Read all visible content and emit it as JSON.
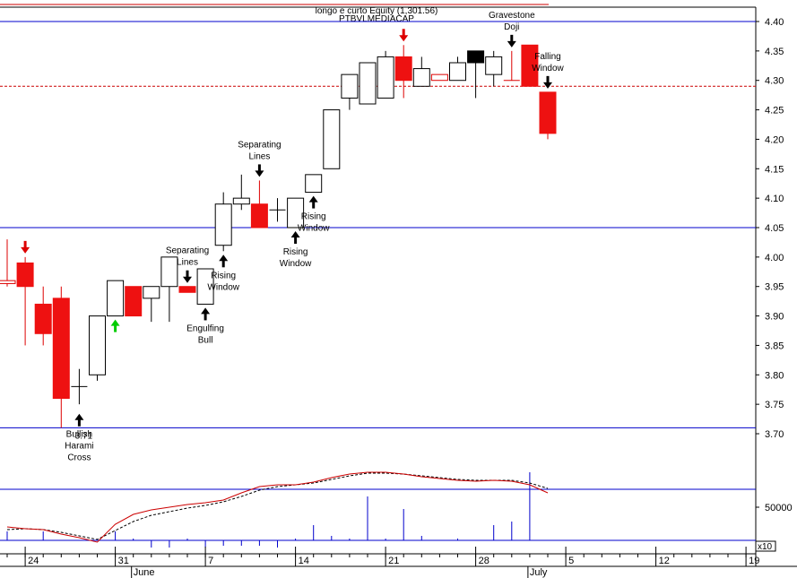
{
  "chart_data": {
    "type": "candlestick",
    "title": "longo e curto Equity (1,301.56)",
    "subtitle": "PTBVLMEDIACAP",
    "y_ticks": [
      4.4,
      4.35,
      4.3,
      4.25,
      4.2,
      4.15,
      4.1,
      4.05,
      4.0,
      3.95,
      3.9,
      3.85,
      3.8,
      3.75,
      3.7
    ],
    "ylim": [
      3.7,
      4.4
    ],
    "horizontal_lines": [
      {
        "value": 4.4,
        "style": "solid",
        "color": "#0000cc"
      },
      {
        "value": 4.05,
        "style": "solid",
        "color": "#0000cc"
      },
      {
        "value": 3.71,
        "style": "solid",
        "color": "#0000cc"
      },
      {
        "value": 4.29,
        "style": "dashed",
        "color": "#cc0000"
      }
    ],
    "last_value_label": "3.71",
    "candles": [
      {
        "i": 0,
        "o": 3.955,
        "h": 4.03,
        "l": 3.95,
        "c": 3.96,
        "color": "red_hollow"
      },
      {
        "i": 1,
        "o": 3.99,
        "h": 4.0,
        "l": 3.85,
        "c": 3.95,
        "color": "red"
      },
      {
        "i": 2,
        "o": 3.92,
        "h": 3.95,
        "l": 3.85,
        "c": 3.87,
        "color": "red"
      },
      {
        "i": 3,
        "o": 3.93,
        "h": 3.95,
        "l": 3.71,
        "c": 3.76,
        "color": "red"
      },
      {
        "i": 4,
        "o": 3.78,
        "h": 3.81,
        "l": 3.75,
        "c": 3.78,
        "color": "cross"
      },
      {
        "i": 5,
        "o": 3.8,
        "h": 3.9,
        "l": 3.79,
        "c": 3.9,
        "color": "white"
      },
      {
        "i": 6,
        "o": 3.9,
        "h": 3.96,
        "l": 3.9,
        "c": 3.96,
        "color": "white"
      },
      {
        "i": 7,
        "o": 3.95,
        "h": 3.95,
        "l": 3.9,
        "c": 3.9,
        "color": "red"
      },
      {
        "i": 8,
        "o": 3.93,
        "h": 3.95,
        "l": 3.89,
        "c": 3.95,
        "color": "white"
      },
      {
        "i": 9,
        "o": 3.95,
        "h": 4.0,
        "l": 3.89,
        "c": 4.0,
        "color": "white"
      },
      {
        "i": 10,
        "o": 3.95,
        "h": 3.95,
        "l": 3.94,
        "c": 3.94,
        "color": "red"
      },
      {
        "i": 11,
        "o": 3.92,
        "h": 3.98,
        "l": 3.92,
        "c": 3.98,
        "color": "white"
      },
      {
        "i": 12,
        "o": 4.02,
        "h": 4.11,
        "l": 4.01,
        "c": 4.09,
        "color": "white"
      },
      {
        "i": 13,
        "o": 4.09,
        "h": 4.14,
        "l": 4.08,
        "c": 4.1,
        "color": "white"
      },
      {
        "i": 14,
        "o": 4.09,
        "h": 4.13,
        "l": 4.05,
        "c": 4.05,
        "color": "red"
      },
      {
        "i": 15,
        "o": 4.08,
        "h": 4.1,
        "l": 4.06,
        "c": 4.08,
        "color": "cross"
      },
      {
        "i": 16,
        "o": 4.05,
        "h": 4.1,
        "l": 4.05,
        "c": 4.1,
        "color": "white"
      },
      {
        "i": 17,
        "o": 4.11,
        "h": 4.14,
        "l": 4.11,
        "c": 4.14,
        "color": "white"
      },
      {
        "i": 18,
        "o": 4.15,
        "h": 4.25,
        "l": 4.15,
        "c": 4.25,
        "color": "white"
      },
      {
        "i": 19,
        "o": 4.27,
        "h": 4.31,
        "l": 4.25,
        "c": 4.31,
        "color": "white"
      },
      {
        "i": 20,
        "o": 4.26,
        "h": 4.33,
        "l": 4.26,
        "c": 4.33,
        "color": "white"
      },
      {
        "i": 21,
        "o": 4.27,
        "h": 4.35,
        "l": 4.27,
        "c": 4.34,
        "color": "white"
      },
      {
        "i": 22,
        "o": 4.34,
        "h": 4.36,
        "l": 4.27,
        "c": 4.3,
        "color": "red"
      },
      {
        "i": 23,
        "o": 4.29,
        "h": 4.34,
        "l": 4.29,
        "c": 4.32,
        "color": "white"
      },
      {
        "i": 24,
        "o": 4.3,
        "h": 4.31,
        "l": 4.3,
        "c": 4.31,
        "color": "red_hollow"
      },
      {
        "i": 25,
        "o": 4.3,
        "h": 4.34,
        "l": 4.3,
        "c": 4.33,
        "color": "white"
      },
      {
        "i": 26,
        "o": 4.33,
        "h": 4.35,
        "l": 4.27,
        "c": 4.35,
        "color": "black"
      },
      {
        "i": 27,
        "o": 4.31,
        "h": 4.35,
        "l": 4.29,
        "c": 4.34,
        "color": "white"
      },
      {
        "i": 28,
        "o": 4.3,
        "h": 4.35,
        "l": 4.3,
        "c": 4.3,
        "color": "red_line"
      },
      {
        "i": 29,
        "o": 4.36,
        "h": 4.36,
        "l": 4.29,
        "c": 4.29,
        "color": "red"
      },
      {
        "i": 30,
        "o": 4.28,
        "h": 4.28,
        "l": 4.2,
        "c": 4.21,
        "color": "red"
      }
    ],
    "annotations": [
      {
        "i": 4,
        "price": 3.74,
        "side": "below",
        "arrow": "up",
        "arrow_color": "#000000",
        "lines": [
          "Bullish",
          "Harami",
          "Cross"
        ]
      },
      {
        "i": 6,
        "price": 3.9,
        "side": "below",
        "arrow": "up",
        "arrow_color": "#00cc00",
        "lines": []
      },
      {
        "i": 1,
        "price": 4.0,
        "side": "above",
        "arrow": "down",
        "arrow_color": "#dd0000",
        "lines": []
      },
      {
        "i": 10,
        "price": 3.95,
        "side": "above",
        "arrow": "down",
        "arrow_color": "#000000",
        "lines": [
          "Separating",
          "Lines"
        ]
      },
      {
        "i": 11,
        "price": 3.92,
        "side": "below",
        "arrow": "up",
        "arrow_color": "#000000",
        "lines": [
          "Engulfing",
          "Bull"
        ]
      },
      {
        "i": 12,
        "price": 4.01,
        "side": "below",
        "arrow": "up",
        "arrow_color": "#000000",
        "lines": [
          "Rising",
          "Window"
        ]
      },
      {
        "i": 14,
        "price": 4.13,
        "side": "above",
        "arrow": "down",
        "arrow_color": "#000000",
        "lines": [
          "Separating",
          "Lines"
        ]
      },
      {
        "i": 16,
        "price": 4.05,
        "side": "below",
        "arrow": "up",
        "arrow_color": "#000000",
        "lines": [
          "Rising",
          "Window"
        ]
      },
      {
        "i": 17,
        "price": 4.11,
        "side": "below",
        "arrow": "up",
        "arrow_color": "#000000",
        "lines": [
          "Rising",
          "Window"
        ]
      },
      {
        "i": 22,
        "price": 4.36,
        "side": "above",
        "arrow": "down",
        "arrow_color": "#dd0000",
        "lines": []
      },
      {
        "i": 28,
        "price": 4.35,
        "side": "above",
        "arrow": "down",
        "arrow_color": "#000000",
        "lines": [
          "Gravestone",
          "Doji"
        ]
      },
      {
        "i": 30,
        "price": 4.28,
        "side": "above",
        "arrow": "down",
        "arrow_color": "#000000",
        "lines": [
          "Falling",
          "Window"
        ]
      }
    ],
    "indicator": {
      "label": "50000",
      "ma_fast": [
        588,
        590,
        591,
        596,
        600,
        605,
        585,
        574,
        569,
        566,
        563,
        561,
        558,
        550,
        543,
        541,
        541,
        538,
        533,
        529,
        527,
        527,
        529,
        532,
        534,
        536,
        537,
        536,
        537,
        541,
        550
      ],
      "ma_slow": [
        591,
        590,
        591,
        594,
        598,
        602,
        592,
        582,
        575,
        571,
        567,
        564,
        560,
        554,
        547,
        543,
        541,
        539,
        535,
        531,
        528,
        528,
        529,
        531,
        533,
        535,
        536,
        536,
        536,
        539,
        545
      ],
      "volume_tops": [
        593,
        603,
        593,
        603,
        603,
        603,
        593,
        601,
        611,
        611,
        601,
        611,
        609,
        609,
        609,
        611,
        601,
        586,
        598,
        601,
        554,
        601,
        568,
        598,
        603,
        601,
        603,
        586,
        582,
        527,
        603
      ]
    },
    "x_axis": {
      "day_ticks": [
        {
          "label": "24",
          "i": 1
        },
        {
          "label": "31",
          "i": 6
        },
        {
          "label": "7",
          "i": 11
        },
        {
          "label": "14",
          "i": 16
        },
        {
          "label": "21",
          "i": 21
        },
        {
          "label": "28",
          "i": 26
        },
        {
          "label": "5",
          "i": 31
        },
        {
          "label": "12",
          "i": 36
        },
        {
          "label": "19",
          "i": 41
        }
      ],
      "months": [
        {
          "label": "June",
          "i": 6.9
        },
        {
          "label": "July",
          "i": 28.9
        }
      ],
      "x10_label": "x10"
    }
  }
}
